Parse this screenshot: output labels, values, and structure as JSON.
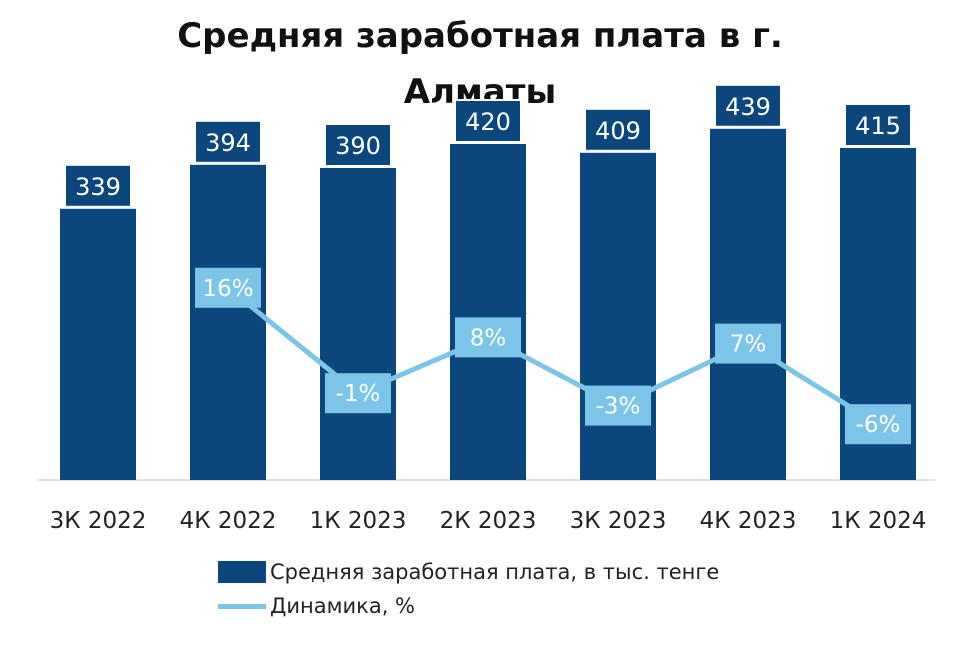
{
  "chart_data": {
    "type": "bar",
    "title": "Средняя заработная плата в г. Алматы",
    "title_lines": [
      "Средняя заработная плата в г.",
      "Алматы"
    ],
    "categories": [
      "3К 2022",
      "4К 2022",
      "1К 2023",
      "2К 2023",
      "3К 2023",
      "4К 2023",
      "1К 2024"
    ],
    "series": [
      {
        "name": "Средняя заработная плата, в тыс. тенге",
        "type": "bar",
        "values": [
          339,
          394,
          390,
          420,
          409,
          439,
          415
        ],
        "labels": [
          "339",
          "394",
          "390",
          "420",
          "409",
          "439",
          "415"
        ],
        "color": "#0b477d"
      },
      {
        "name": "Динамика, %",
        "type": "line",
        "values": [
          null,
          16,
          -1,
          8,
          -3,
          7,
          -6
        ],
        "labels": [
          "",
          "16%",
          "-1%",
          "8%",
          "-3%",
          "7%",
          "-6%"
        ],
        "color": "#7cc4e8"
      }
    ],
    "ylim": [
      0,
      500
    ],
    "grid": false,
    "legend_position": "bottom"
  }
}
